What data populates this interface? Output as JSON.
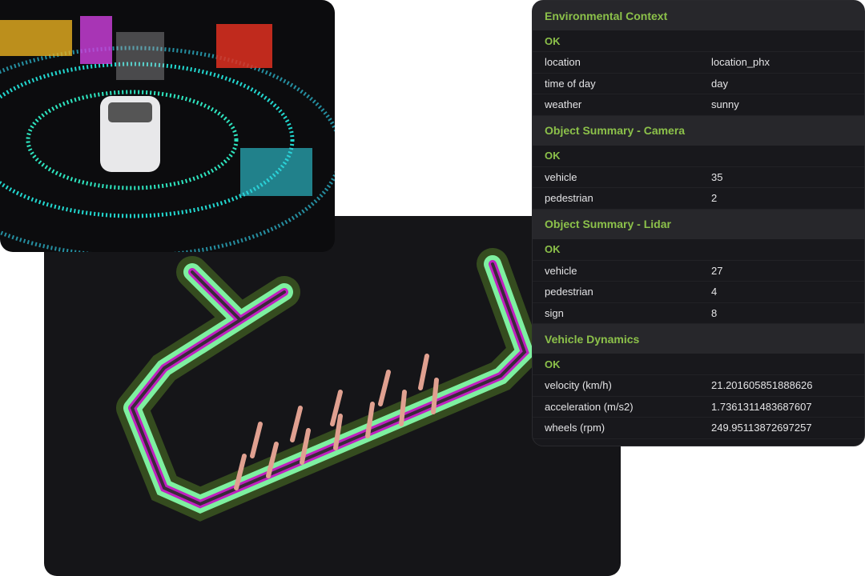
{
  "panel": {
    "accent_color": "#8cc14a",
    "sections": [
      {
        "title": "Environmental Context",
        "status": "OK",
        "rows": [
          {
            "key": "location",
            "value": "location_phx"
          },
          {
            "key": "time of day",
            "value": "day"
          },
          {
            "key": "weather",
            "value": "sunny"
          }
        ]
      },
      {
        "title": "Object Summary - Camera",
        "status": "OK",
        "rows": [
          {
            "key": "vehicle",
            "value": "35"
          },
          {
            "key": "pedestrian",
            "value": "2"
          }
        ]
      },
      {
        "title": "Object Summary - Lidar",
        "status": "OK",
        "rows": [
          {
            "key": "vehicle",
            "value": "27"
          },
          {
            "key": "pedestrian",
            "value": "4"
          },
          {
            "key": "sign",
            "value": "8"
          }
        ]
      },
      {
        "title": "Vehicle Dynamics",
        "status": "OK",
        "rows": [
          {
            "key": "velocity (km/h)",
            "value": "21.201605851888626"
          },
          {
            "key": "acceleration (m/s2)",
            "value": "1.7361311483687607"
          },
          {
            "key": "wheels (rpm)",
            "value": "249.95113872697257"
          }
        ]
      }
    ]
  }
}
